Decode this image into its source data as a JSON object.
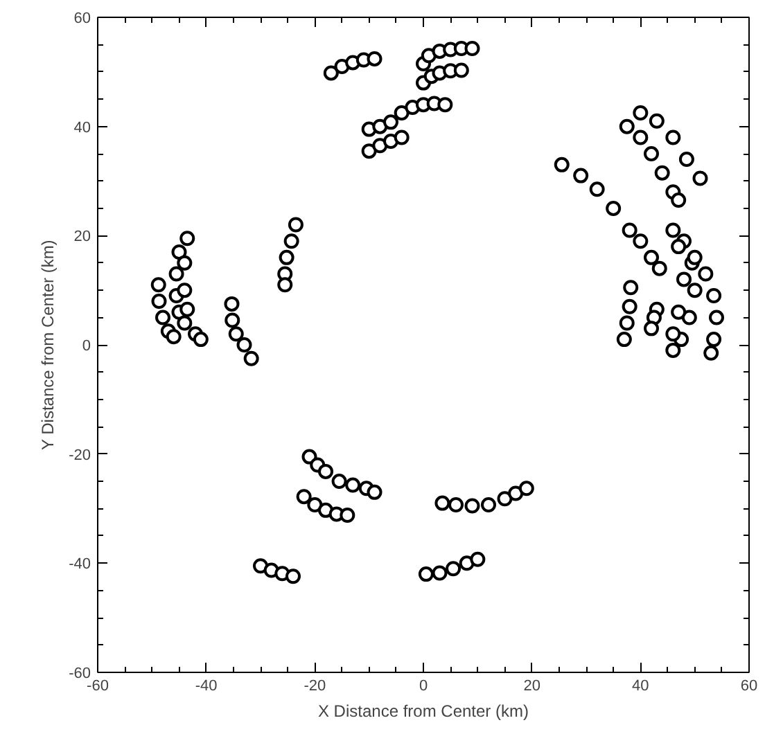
{
  "chart_data": {
    "type": "scatter",
    "xlabel": "X Distance from Center (km)",
    "ylabel": "Y Distance from Center (km)",
    "xlim": [
      -60,
      60
    ],
    "ylim": [
      -60,
      60
    ],
    "xticks": [
      -60,
      -40,
      -20,
      0,
      20,
      40,
      60
    ],
    "yticks": [
      -60,
      -40,
      -20,
      0,
      20,
      40,
      60
    ],
    "grid": false,
    "marker": "circle",
    "series": [
      {
        "color": "#000000",
        "x": [
          -17,
          -15,
          -13,
          -11,
          -9,
          0,
          1,
          3,
          5,
          7,
          9,
          0,
          1.5,
          3,
          5,
          7,
          -10,
          -8,
          -6,
          -4,
          -2,
          0,
          2,
          4,
          -10,
          -8,
          -6,
          -4,
          40,
          43,
          46,
          48.5,
          51,
          37.5,
          40,
          42,
          44,
          46,
          47,
          25.5,
          29,
          32,
          35,
          38,
          40,
          42,
          43.5,
          46,
          48,
          49.5,
          50,
          49,
          47.5,
          46,
          47,
          48,
          47,
          46,
          50,
          52,
          53.5,
          54,
          53.5,
          53,
          38.2,
          38,
          37.5,
          37,
          43,
          42.5,
          42,
          -48.8,
          -48.7,
          -48,
          -47,
          -46,
          -43.5,
          -45,
          -45.5,
          -45.5,
          -45,
          -44,
          -42,
          -41,
          -44,
          -44,
          -43.5,
          -35.3,
          -35.2,
          -34.5,
          -33,
          -31.7,
          -23.5,
          -24.3,
          -25.2,
          -25.5,
          -25.5,
          -21,
          -19.5,
          -18,
          -15.5,
          -13,
          -10.5,
          -9,
          -22,
          -20,
          -18,
          -16,
          -14,
          3.5,
          6,
          9,
          12,
          15,
          17,
          19,
          -30,
          -28,
          -26,
          -24,
          0.5,
          3,
          5.5,
          8,
          10
        ],
        "values": [
          49.8,
          51,
          51.7,
          52.2,
          52.4,
          51.5,
          53,
          53.8,
          54.1,
          54.3,
          54.3,
          48,
          49.2,
          49.8,
          50.2,
          50.3,
          39.5,
          40,
          40.8,
          42.5,
          43.5,
          44,
          44.2,
          44,
          35.5,
          36.5,
          37.3,
          38,
          42.5,
          41,
          38,
          34,
          30.5,
          40,
          38,
          35,
          31.5,
          28,
          26.5,
          33,
          31,
          28.5,
          25,
          21,
          19,
          16,
          14,
          21,
          19,
          15,
          10,
          5,
          1,
          -1,
          18,
          12,
          6,
          2,
          16,
          13,
          9,
          5,
          1,
          -1.5,
          10.5,
          7,
          4,
          1,
          6.5,
          5,
          3,
          11,
          8,
          5,
          2.5,
          1.5,
          19.5,
          17,
          13,
          9,
          6,
          4,
          2,
          1,
          15,
          10,
          6.5,
          7.5,
          4.5,
          2,
          0,
          -2.5,
          22,
          19,
          16,
          13,
          11,
          -20.5,
          -22,
          -23.2,
          -25,
          -25.7,
          -26.3,
          -27,
          -27.8,
          -29.3,
          -30.3,
          -31,
          -31.2,
          -29,
          -29.3,
          -29.5,
          -29.3,
          -28.2,
          -27.2,
          -26.3,
          -40.5,
          -41.3,
          -41.9,
          -42.4,
          -42,
          -41.8,
          -41,
          -40,
          -39.3
        ]
      }
    ]
  }
}
